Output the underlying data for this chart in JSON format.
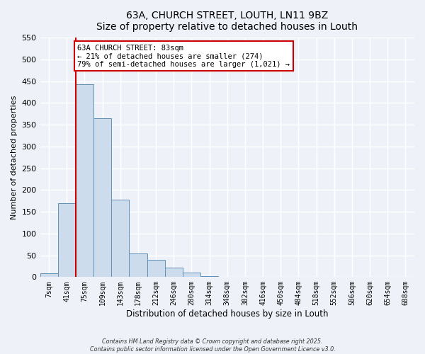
{
  "title": "63A, CHURCH STREET, LOUTH, LN11 9BZ",
  "subtitle": "Size of property relative to detached houses in Louth",
  "xlabel": "Distribution of detached houses by size in Louth",
  "ylabel": "Number of detached properties",
  "bar_labels": [
    "7sqm",
    "41sqm",
    "75sqm",
    "109sqm",
    "143sqm",
    "178sqm",
    "212sqm",
    "246sqm",
    "280sqm",
    "314sqm",
    "348sqm",
    "382sqm",
    "416sqm",
    "450sqm",
    "484sqm",
    "518sqm",
    "552sqm",
    "586sqm",
    "620sqm",
    "654sqm",
    "688sqm"
  ],
  "bar_values": [
    8,
    170,
    443,
    365,
    178,
    55,
    40,
    22,
    10,
    2,
    0,
    0,
    0,
    1,
    0,
    0,
    0,
    0,
    0,
    0,
    0
  ],
  "bar_color": "#ccdcec",
  "bar_edge_color": "#6090b8",
  "vline_index": 2,
  "vline_color": "#cc0000",
  "annotation_title": "63A CHURCH STREET: 83sqm",
  "annotation_line1": "← 21% of detached houses are smaller (274)",
  "annotation_line2": "79% of semi-detached houses are larger (1,021) →",
  "annotation_box_color": "#ffffff",
  "annotation_box_edge": "#cc0000",
  "ylim": [
    0,
    550
  ],
  "yticks": [
    0,
    50,
    100,
    150,
    200,
    250,
    300,
    350,
    400,
    450,
    500,
    550
  ],
  "footer1": "Contains HM Land Registry data © Crown copyright and database right 2025.",
  "footer2": "Contains public sector information licensed under the Open Government Licence v3.0.",
  "bg_color": "#eef2f8",
  "grid_color": "#ffffff",
  "plot_bg": "#eef2f8"
}
